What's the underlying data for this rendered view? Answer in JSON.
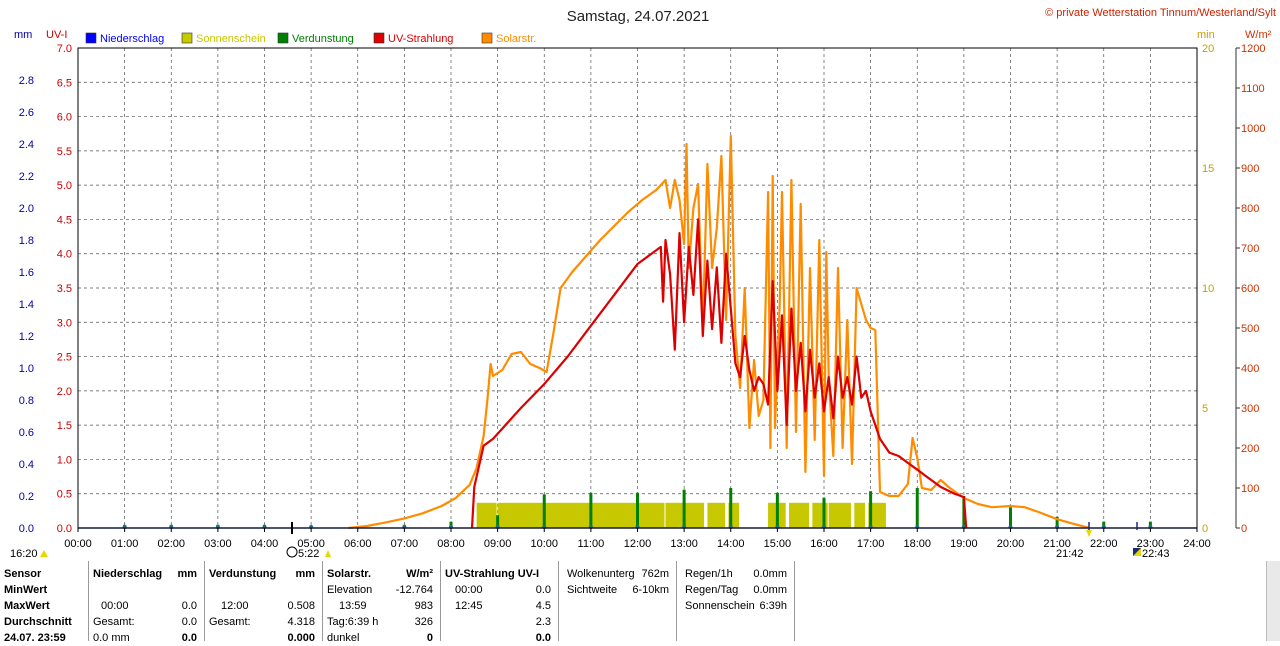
{
  "title": "Samstag, 24.07.2021",
  "copyright": "© private Wetterstation Tinnum/Westerland/Sylt",
  "colors": {
    "niederschlag": "#0000ff",
    "sonnenschein": "#c8c800",
    "verdunstung": "#008000",
    "uv": "#dd0000",
    "solar": "#ff8c00",
    "uvaxis": "#cc0000",
    "mmaxis": "#0000aa"
  },
  "axis_units": {
    "left1": "mm",
    "left2": "UV-I",
    "right1": "min",
    "right2": "W/m²"
  },
  "chart_data": {
    "type": "line",
    "x_ticks": [
      "00:00",
      "01:00",
      "02:00",
      "03:00",
      "04:00",
      "05:00",
      "06:00",
      "07:00",
      "08:00",
      "09:00",
      "10:00",
      "11:00",
      "12:00",
      "13:00",
      "14:00",
      "15:00",
      "16:00",
      "17:00",
      "18:00",
      "19:00",
      "20:00",
      "21:00",
      "22:00",
      "23:00",
      "24:00"
    ],
    "axes": {
      "mm": {
        "ticks": [
          "0.0",
          "0.2",
          "0.4",
          "0.6",
          "0.8",
          "1.0",
          "1.2",
          "1.4",
          "1.6",
          "1.8",
          "2.0",
          "2.2",
          "2.4",
          "2.6",
          "2.8"
        ],
        "range": [
          0,
          3.0
        ]
      },
      "uv": {
        "ticks": [
          "0.0",
          "0.5",
          "1.0",
          "1.5",
          "2.0",
          "2.5",
          "3.0",
          "3.5",
          "4.0",
          "4.5",
          "5.0",
          "5.5",
          "6.0",
          "6.5",
          "7.0"
        ],
        "range": [
          0,
          7.0
        ]
      },
      "min": {
        "ticks": [
          "0",
          "5",
          "10",
          "15",
          "20"
        ],
        "range": [
          0,
          20
        ]
      },
      "wm2": {
        "ticks": [
          "0",
          "100",
          "200",
          "300",
          "400",
          "500",
          "600",
          "700",
          "800",
          "900",
          "1000",
          "1100",
          "1200"
        ],
        "range": [
          0,
          1200
        ]
      }
    },
    "legend": [
      {
        "label": "Niederschlag",
        "color": "#0000ff"
      },
      {
        "label": "Sonnenschein",
        "color": "#c8c800"
      },
      {
        "label": "Verdunstung",
        "color": "#008000"
      },
      {
        "label": "UV-Strahlung",
        "color": "#dd0000"
      },
      {
        "label": "Solarstr.",
        "color": "#ff8c00"
      }
    ],
    "series": [
      {
        "name": "Solarstr.",
        "axis": "wm2",
        "color": "#ff8c00",
        "points": [
          [
            5.8,
            0
          ],
          [
            6.2,
            5
          ],
          [
            6.6,
            14
          ],
          [
            7.0,
            24
          ],
          [
            7.4,
            37
          ],
          [
            7.8,
            55
          ],
          [
            8.1,
            75
          ],
          [
            8.4,
            108
          ],
          [
            8.55,
            150
          ],
          [
            8.7,
            230
          ],
          [
            8.78,
            320
          ],
          [
            8.85,
            410
          ],
          [
            8.9,
            380
          ],
          [
            9.1,
            395
          ],
          [
            9.3,
            435
          ],
          [
            9.5,
            440
          ],
          [
            9.7,
            410
          ],
          [
            9.9,
            400
          ],
          [
            10.05,
            390
          ],
          [
            10.2,
            490
          ],
          [
            10.35,
            600
          ],
          [
            10.6,
            640
          ],
          [
            10.9,
            680
          ],
          [
            11.2,
            720
          ],
          [
            11.5,
            755
          ],
          [
            11.8,
            790
          ],
          [
            12.1,
            820
          ],
          [
            12.4,
            845
          ],
          [
            12.6,
            870
          ],
          [
            12.7,
            800
          ],
          [
            12.8,
            870
          ],
          [
            12.9,
            820
          ],
          [
            13.0,
            710
          ],
          [
            13.05,
            960
          ],
          [
            13.1,
            650
          ],
          [
            13.2,
            800
          ],
          [
            13.3,
            860
          ],
          [
            13.4,
            500
          ],
          [
            13.5,
            910
          ],
          [
            13.6,
            650
          ],
          [
            13.7,
            750
          ],
          [
            13.8,
            930
          ],
          [
            13.9,
            520
          ],
          [
            14.0,
            980
          ],
          [
            14.1,
            480
          ],
          [
            14.2,
            350
          ],
          [
            14.3,
            600
          ],
          [
            14.4,
            250
          ],
          [
            14.5,
            420
          ],
          [
            14.6,
            280
          ],
          [
            14.7,
            320
          ],
          [
            14.8,
            840
          ],
          [
            14.85,
            200
          ],
          [
            14.9,
            880
          ],
          [
            14.95,
            250
          ],
          [
            15.05,
            560
          ],
          [
            15.1,
            840
          ],
          [
            15.2,
            200
          ],
          [
            15.3,
            870
          ],
          [
            15.4,
            240
          ],
          [
            15.5,
            810
          ],
          [
            15.6,
            140
          ],
          [
            15.7,
            650
          ],
          [
            15.8,
            220
          ],
          [
            15.9,
            720
          ],
          [
            16.0,
            130
          ],
          [
            16.05,
            690
          ],
          [
            16.1,
            380
          ],
          [
            16.2,
            180
          ],
          [
            16.3,
            650
          ],
          [
            16.4,
            200
          ],
          [
            16.5,
            520
          ],
          [
            16.6,
            160
          ],
          [
            16.7,
            600
          ],
          [
            16.8,
            560
          ],
          [
            16.9,
            520
          ],
          [
            17.0,
            500
          ],
          [
            17.1,
            495
          ],
          [
            17.2,
            90
          ],
          [
            17.4,
            80
          ],
          [
            17.6,
            80
          ],
          [
            17.8,
            110
          ],
          [
            17.9,
            225
          ],
          [
            18.0,
            175
          ],
          [
            18.1,
            100
          ],
          [
            18.3,
            95
          ],
          [
            18.5,
            120
          ],
          [
            18.7,
            100
          ],
          [
            19.0,
            75
          ],
          [
            19.3,
            60
          ],
          [
            19.6,
            52
          ],
          [
            20.0,
            55
          ],
          [
            20.3,
            52
          ],
          [
            20.6,
            40
          ],
          [
            21.0,
            22
          ],
          [
            21.3,
            12
          ],
          [
            21.6,
            3
          ],
          [
            21.7,
            0
          ]
        ]
      },
      {
        "name": "UV-Strahlung",
        "axis": "uv",
        "color": "#dd0000",
        "points": [
          [
            8.45,
            0
          ],
          [
            8.5,
            0.6
          ],
          [
            8.7,
            1.2
          ],
          [
            8.9,
            1.3
          ],
          [
            9.1,
            1.45
          ],
          [
            9.5,
            1.75
          ],
          [
            10.0,
            2.1
          ],
          [
            10.5,
            2.5
          ],
          [
            11.0,
            2.95
          ],
          [
            11.5,
            3.4
          ],
          [
            12.0,
            3.85
          ],
          [
            12.3,
            4.0
          ],
          [
            12.5,
            4.1
          ],
          [
            12.55,
            3.3
          ],
          [
            12.6,
            4.2
          ],
          [
            12.7,
            3.7
          ],
          [
            12.8,
            2.6
          ],
          [
            12.9,
            4.3
          ],
          [
            13.0,
            3.0
          ],
          [
            13.1,
            4.1
          ],
          [
            13.2,
            3.4
          ],
          [
            13.3,
            4.5
          ],
          [
            13.4,
            2.8
          ],
          [
            13.5,
            3.9
          ],
          [
            13.6,
            2.9
          ],
          [
            13.7,
            3.8
          ],
          [
            13.8,
            2.7
          ],
          [
            13.9,
            4.0
          ],
          [
            14.0,
            3.2
          ],
          [
            14.1,
            2.4
          ],
          [
            14.2,
            2.2
          ],
          [
            14.3,
            2.8
          ],
          [
            14.4,
            2.3
          ],
          [
            14.5,
            2.0
          ],
          [
            14.6,
            2.2
          ],
          [
            14.7,
            2.1
          ],
          [
            14.8,
            1.8
          ],
          [
            14.9,
            3.6
          ],
          [
            15.0,
            2.0
          ],
          [
            15.1,
            3.1
          ],
          [
            15.2,
            1.5
          ],
          [
            15.3,
            3.2
          ],
          [
            15.4,
            2.0
          ],
          [
            15.5,
            2.7
          ],
          [
            15.6,
            1.7
          ],
          [
            15.7,
            2.6
          ],
          [
            15.8,
            1.9
          ],
          [
            15.9,
            2.4
          ],
          [
            16.0,
            1.7
          ],
          [
            16.1,
            2.2
          ],
          [
            16.2,
            1.6
          ],
          [
            16.3,
            2.5
          ],
          [
            16.4,
            1.9
          ],
          [
            16.5,
            2.2
          ],
          [
            16.6,
            1.8
          ],
          [
            16.7,
            2.5
          ],
          [
            16.8,
            1.9
          ],
          [
            16.9,
            2.0
          ],
          [
            17.0,
            1.7
          ],
          [
            17.1,
            1.5
          ],
          [
            17.2,
            1.3
          ],
          [
            17.4,
            1.1
          ],
          [
            17.6,
            1.05
          ],
          [
            17.8,
            0.95
          ],
          [
            18.0,
            0.85
          ],
          [
            18.2,
            0.75
          ],
          [
            18.5,
            0.6
          ],
          [
            18.8,
            0.5
          ],
          [
            19.0,
            0.45
          ],
          [
            19.05,
            0
          ]
        ]
      },
      {
        "name": "Sonnenschein",
        "axis": "min",
        "color": "#c8c800",
        "blocks": [
          [
            8.55,
            9.0
          ],
          [
            9.0,
            12.6
          ],
          [
            12.6,
            13.0
          ],
          [
            13.0,
            13.45
          ],
          [
            13.5,
            13.9
          ],
          [
            13.95,
            14.2
          ],
          [
            14.8,
            15.2
          ],
          [
            15.25,
            15.7
          ],
          [
            15.75,
            16.1
          ],
          [
            16.1,
            16.6
          ],
          [
            16.65,
            16.9
          ],
          [
            16.95,
            17.35
          ]
        ],
        "value": 1.05
      },
      {
        "name": "Verdunstung",
        "axis": "mm",
        "color": "#008000",
        "bars": [
          [
            1.0,
            0.02
          ],
          [
            2.0,
            0.02
          ],
          [
            3.0,
            0.02
          ],
          [
            4.0,
            0.02
          ],
          [
            5.0,
            0.01
          ],
          [
            7.0,
            0.02
          ],
          [
            8.0,
            0.04
          ],
          [
            9.0,
            0.08
          ],
          [
            10.0,
            0.21
          ],
          [
            11.0,
            0.22
          ],
          [
            12.0,
            0.22
          ],
          [
            13.0,
            0.24
          ],
          [
            14.0,
            0.25
          ],
          [
            15.0,
            0.22
          ],
          [
            16.0,
            0.19
          ],
          [
            17.0,
            0.23
          ],
          [
            18.0,
            0.25
          ],
          [
            19.0,
            0.2
          ],
          [
            20.0,
            0.13
          ],
          [
            21.0,
            0.07
          ],
          [
            22.0,
            0.04
          ],
          [
            23.0,
            0.04
          ]
        ]
      }
    ],
    "markers": {
      "left_time": "16:20",
      "sunrise_label": "5:22",
      "t2142": "21:42",
      "t2243": "22:43"
    }
  },
  "stats": {
    "sensor": {
      "header": "Sensor",
      "min": "MinWert",
      "max": "MaxWert",
      "avg": "Durchschnitt",
      "date": "24.07. 23:59"
    },
    "nieder": {
      "header": "Niederschlag",
      "unit": "mm",
      "max_time": "00:00",
      "max_val": "0.0",
      "total_label": "Gesamt:",
      "total_val": "0.0",
      "cur": "0.0 mm",
      "cur_val": "0.0"
    },
    "verd": {
      "header": "Verdunstung",
      "unit": "mm",
      "max_time": "12:00",
      "max_val": "0.508",
      "total_label": "Gesamt:",
      "total_val": "4.318",
      "cur_val": "0.000"
    },
    "solar": {
      "header": "Solarstr.",
      "unit": "W/m²",
      "r1l": "Elevation",
      "r1v": "-12.764",
      "r2l": "13:59",
      "r2v": "983",
      "r3l": "Tag:6:39 h",
      "r3v": "326",
      "r4l": "dunkel",
      "r4v": "0"
    },
    "uv": {
      "header": "UV-Strahlung UV-I",
      "r1l": "00:00",
      "r1v": "0.0",
      "r2l": "12:45",
      "r2v": "4.5",
      "r3v": "2.3",
      "r4v": "0.0"
    },
    "wolken": {
      "l1": "Wolkenunterg",
      "v1": "762m",
      "l2": "Sichtweite",
      "v2": "6-10km"
    },
    "regen": {
      "l1": "Regen/1h",
      "v1": "0.0mm",
      "l2": "Regen/Tag",
      "v2": "0.0mm",
      "l3": "Sonnenschein",
      "v3": "6:39h"
    }
  }
}
